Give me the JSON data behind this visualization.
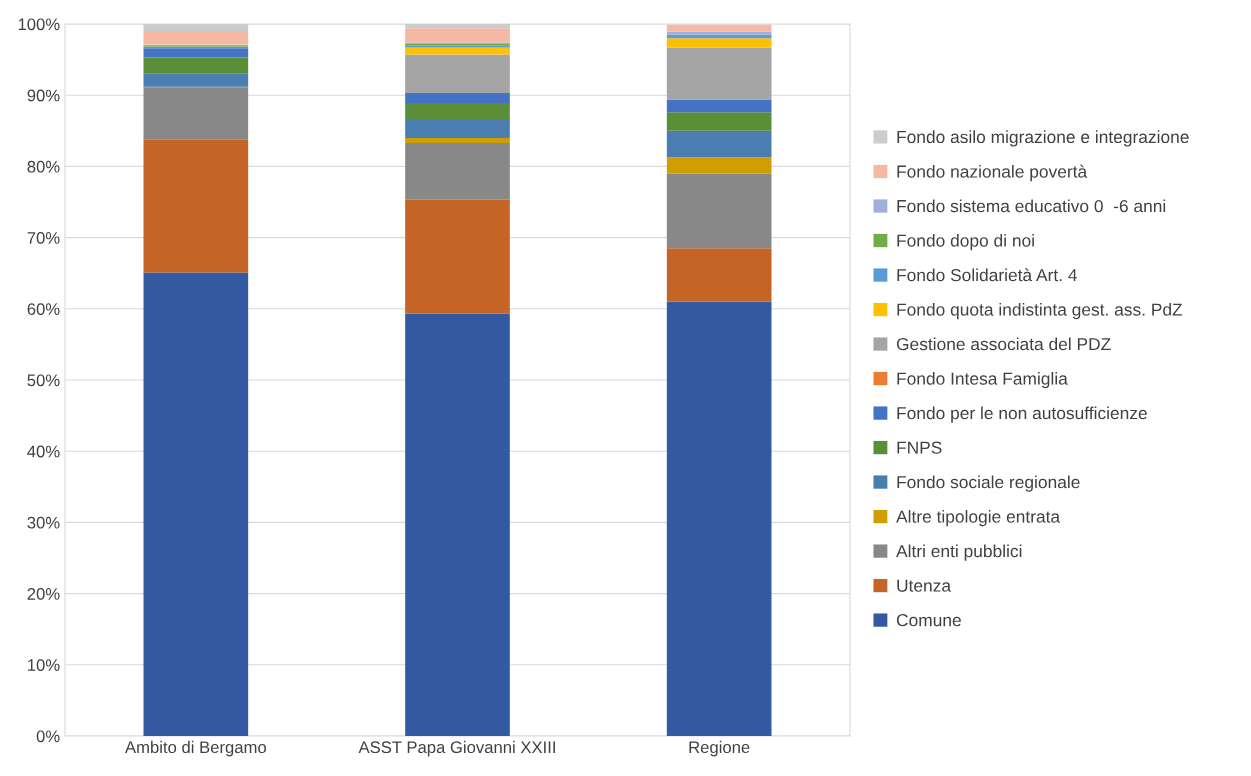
{
  "chart_data": {
    "type": "bar",
    "stacked": true,
    "categories": [
      "Ambito di Bergamo",
      "ASST Papa Giovanni XXIII",
      "Regione"
    ],
    "series": [
      {
        "name": "Comune",
        "color": "#335aa1",
        "values": [
          65.1,
          59.3,
          61.0
        ]
      },
      {
        "name": "Utenza",
        "color": "#c46526",
        "values": [
          18.7,
          16.0,
          7.5
        ]
      },
      {
        "name": "Altri enti pubblici",
        "color": "#888888",
        "values": [
          7.2,
          8.0,
          10.5
        ]
      },
      {
        "name": "Altre tipologie entrata",
        "color": "#d09e00",
        "values": [
          0.2,
          0.7,
          2.3
        ]
      },
      {
        "name": "Fondo sociale regionale",
        "color": "#4a7eb0",
        "values": [
          1.9,
          2.5,
          3.7
        ]
      },
      {
        "name": "FNPS",
        "color": "#5a8e38",
        "values": [
          2.2,
          2.4,
          2.6
        ]
      },
      {
        "name": "Fondo per le non autosufficienze",
        "color": "#4472c4",
        "values": [
          1.3,
          1.4,
          1.8
        ]
      },
      {
        "name": "Fondo Intesa Famiglia",
        "color": "#ed7d31",
        "values": [
          0,
          0,
          0
        ]
      },
      {
        "name": "Gestione associata del PDZ",
        "color": "#a5a5a5",
        "values": [
          0,
          5.4,
          7.3
        ]
      },
      {
        "name": "Fondo quota indistinta gest. ass. PdZ",
        "color": "#ffc000",
        "values": [
          0,
          1.0,
          1.3
        ]
      },
      {
        "name": "Fondo Solidarietà Art. 4",
        "color": "#5b9bd5",
        "values": [
          0.2,
          0.3,
          0.3
        ]
      },
      {
        "name": "Fondo dopo di noi",
        "color": "#70ad47",
        "values": [
          0.1,
          0.2,
          0.2
        ]
      },
      {
        "name": "Fondo sistema educativo 0  -6 anni",
        "color": "#9eb0da",
        "values": [
          0.2,
          0.2,
          0.4
        ]
      },
      {
        "name": "Fondo nazionale povertà",
        "color": "#f4b9a4",
        "values": [
          1.9,
          2.0,
          1.0
        ]
      },
      {
        "name": "Fondo asilo migrazione e integrazione",
        "color": "#cccccc",
        "values": [
          1.0,
          0.6,
          0
        ]
      }
    ],
    "ylim": [
      0,
      100
    ],
    "yticks": [
      {
        "value": 0,
        "label": "0%"
      },
      {
        "value": 10,
        "label": "10%"
      },
      {
        "value": 20,
        "label": "20%"
      },
      {
        "value": 30,
        "label": "30%"
      },
      {
        "value": 40,
        "label": "40%"
      },
      {
        "value": 50,
        "label": "50%"
      },
      {
        "value": 60,
        "label": "60%"
      },
      {
        "value": 70,
        "label": "70%"
      },
      {
        "value": 80,
        "label": "80%"
      },
      {
        "value": 90,
        "label": "90%"
      },
      {
        "value": 100,
        "label": "100%"
      }
    ],
    "grid": "y",
    "legend": "right"
  }
}
